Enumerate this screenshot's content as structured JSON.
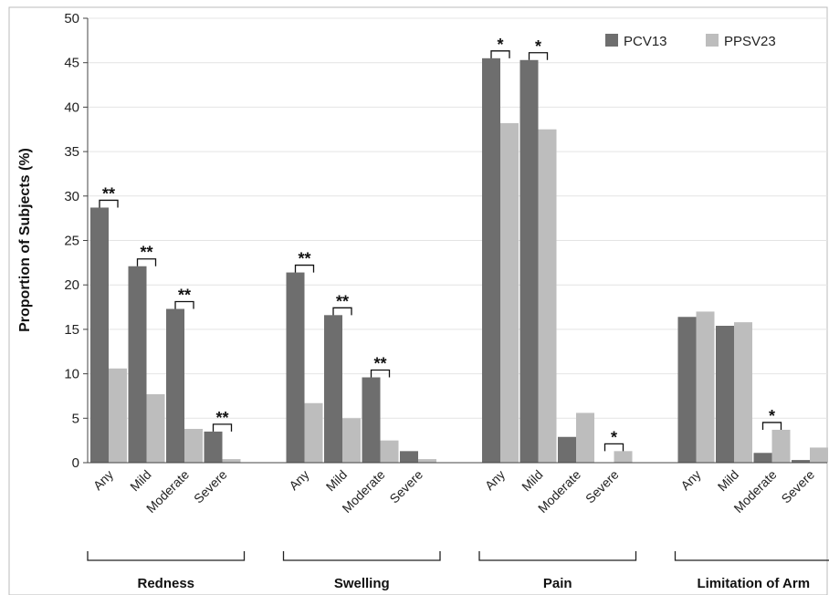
{
  "chart_data": {
    "type": "bar",
    "ylabel": "Proportion of Subjects (%)",
    "ylim": [
      0,
      50
    ],
    "yticks": [
      0,
      5,
      10,
      15,
      20,
      25,
      30,
      35,
      40,
      45,
      50
    ],
    "grid": true,
    "legend_position": "top-right",
    "series": [
      {
        "name": "PCV13",
        "color": "#6e6e6e"
      },
      {
        "name": "PPSV23",
        "color": "#bdbdbd"
      }
    ],
    "groups": [
      {
        "label": "Redness",
        "categories": [
          "Any",
          "Mild",
          "Moderate",
          "Severe"
        ],
        "PCV13": [
          28.7,
          22.1,
          17.3,
          3.5
        ],
        "PPSV23": [
          10.6,
          7.7,
          3.8,
          0.4
        ],
        "significance": [
          "**",
          "**",
          "**",
          "**"
        ]
      },
      {
        "label": "Swelling",
        "categories": [
          "Any",
          "Mild",
          "Moderate",
          "Severe"
        ],
        "PCV13": [
          21.4,
          16.6,
          9.6,
          1.3
        ],
        "PPSV23": [
          6.7,
          5.0,
          2.5,
          0.4
        ],
        "significance": [
          "**",
          "**",
          "**",
          ""
        ]
      },
      {
        "label": "Pain",
        "categories": [
          "Any",
          "Mild",
          "Moderate",
          "Severe"
        ],
        "PCV13": [
          45.5,
          45.3,
          2.9,
          0.0
        ],
        "PPSV23": [
          38.2,
          37.5,
          5.6,
          1.3
        ],
        "significance": [
          "*",
          "*",
          "",
          "*"
        ]
      },
      {
        "label": "Limitation of Arm Movement",
        "categories": [
          "Any",
          "Mild",
          "Moderate",
          "Severe"
        ],
        "PCV13": [
          16.4,
          15.4,
          1.1,
          0.3
        ],
        "PPSV23": [
          17.0,
          15.8,
          3.7,
          1.7
        ],
        "significance": [
          "",
          "",
          "*",
          ""
        ]
      }
    ]
  }
}
